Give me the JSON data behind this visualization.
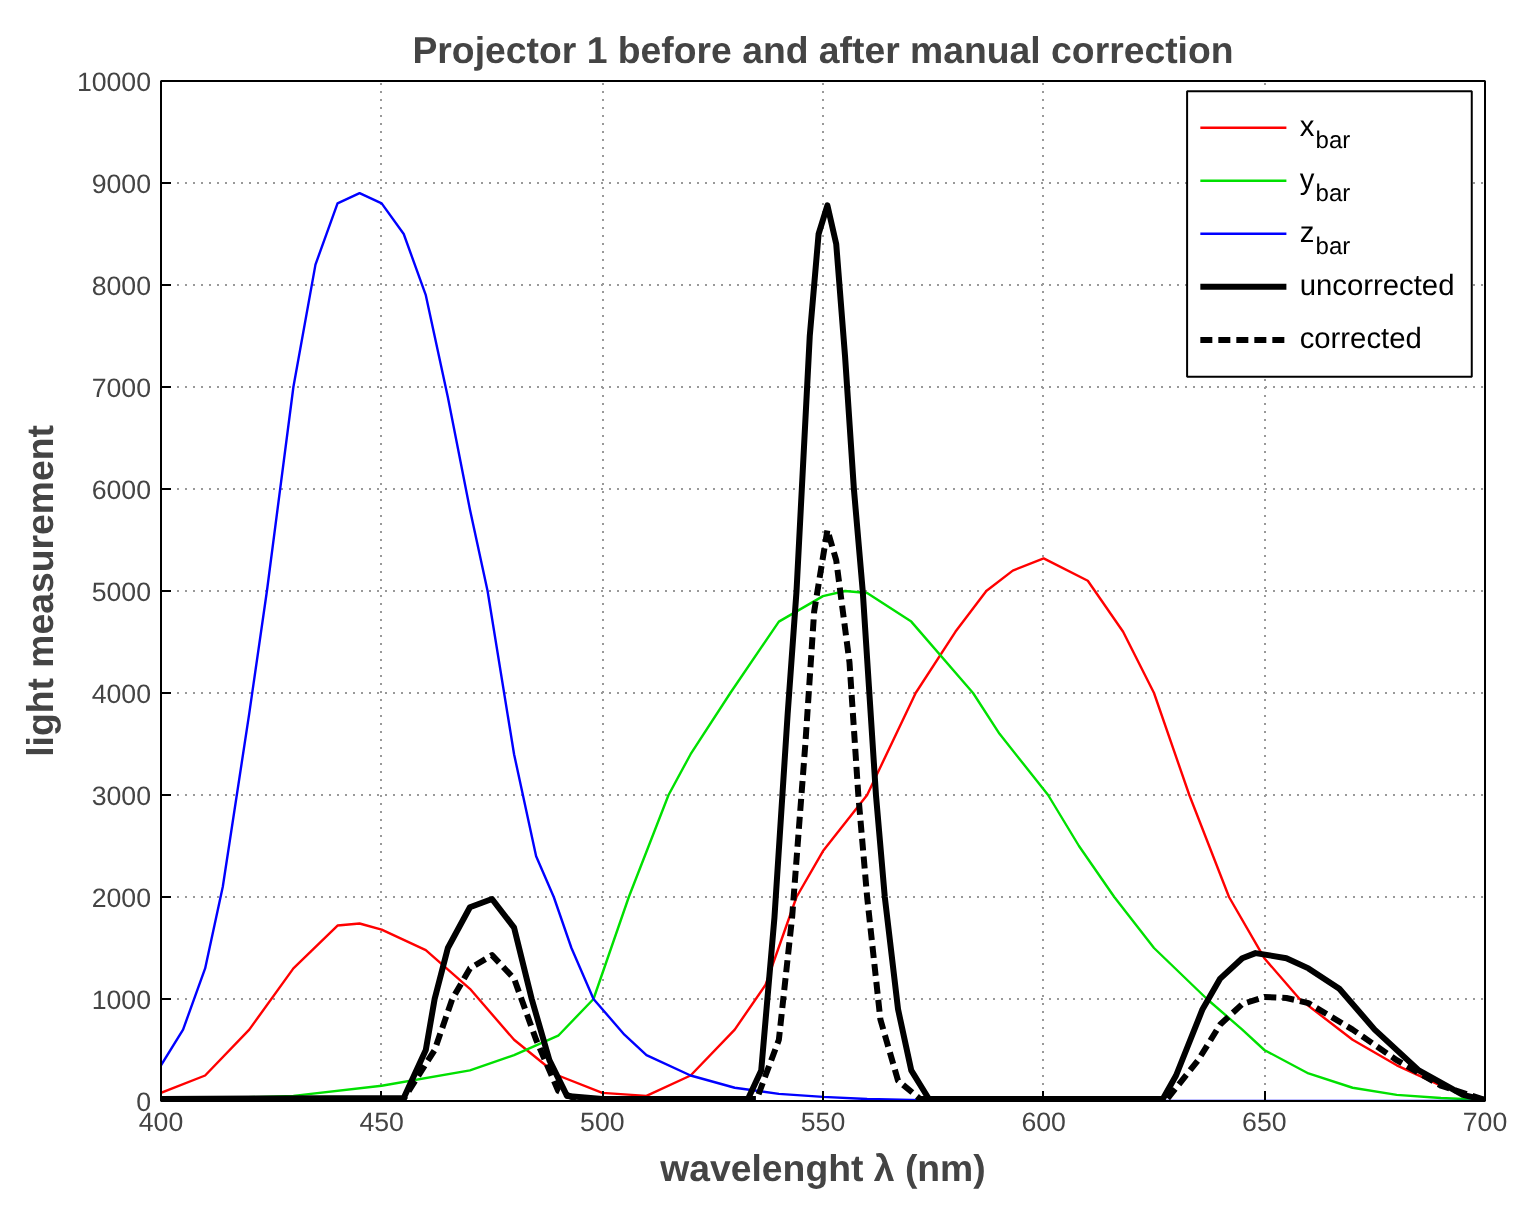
{
  "chart_data": {
    "type": "line",
    "title": "Projector 1 before and after manual correction",
    "xlabel": "wavelenght λ (nm)",
    "ylabel": "light measurement",
    "xlim": [
      400,
      700
    ],
    "ylim": [
      0,
      10000
    ],
    "xticks": [
      400,
      450,
      500,
      550,
      600,
      650,
      700
    ],
    "yticks": [
      0,
      1000,
      2000,
      3000,
      4000,
      5000,
      6000,
      7000,
      8000,
      9000,
      10000
    ],
    "grid": true,
    "legend": "top right",
    "marker": "none",
    "series": [
      {
        "name": "x$_{bar}$",
        "color": "#ff0000",
        "line_style": "solid",
        "x": [
          400,
          410,
          420,
          430,
          440,
          445,
          450,
          460,
          470,
          480,
          490,
          500,
          510,
          520,
          530,
          537,
          544,
          550,
          560,
          571,
          580,
          587,
          593,
          600,
          610,
          618,
          625,
          633,
          642,
          650,
          658,
          670,
          680,
          690
        ],
        "values": [
          80,
          250,
          700,
          1300,
          1720,
          1740,
          1680,
          1480,
          1100,
          600,
          250,
          80,
          50,
          250,
          700,
          1140,
          2000,
          2450,
          3000,
          4000,
          4600,
          5000,
          5200,
          5320,
          5100,
          4600,
          4000,
          3000,
          2000,
          1400,
          1000,
          600,
          350,
          150
        ]
      },
      {
        "name": "y$_{bar}$",
        "color": "#00e000",
        "line_style": "solid",
        "x": [
          400,
          430,
          450,
          470,
          480,
          490,
          498,
          506,
          515,
          520,
          529,
          540,
          550,
          555,
          560,
          570,
          584,
          590,
          601,
          608,
          616,
          625,
          637,
          645,
          650,
          660,
          670,
          680,
          690,
          700
        ],
        "values": [
          10,
          50,
          150,
          300,
          450,
          640,
          1000,
          2000,
          3000,
          3400,
          4000,
          4700,
          4950,
          5000,
          4980,
          4700,
          4000,
          3600,
          3000,
          2500,
          2000,
          1500,
          1000,
          700,
          500,
          270,
          130,
          60,
          30,
          10
        ]
      },
      {
        "name": "z$_{bar}$",
        "color": "#0000ff",
        "line_style": "solid",
        "x": [
          400,
          405,
          410,
          414,
          420,
          424,
          430,
          435,
          440,
          445,
          450,
          455,
          460,
          465,
          470,
          474,
          480,
          485,
          489,
          493,
          498,
          505,
          510,
          520,
          530,
          540,
          550,
          560,
          580,
          600,
          650,
          700
        ],
        "values": [
          350,
          700,
          1300,
          2100,
          3800,
          5000,
          7000,
          8200,
          8800,
          8900,
          8800,
          8500,
          7900,
          6900,
          5800,
          5000,
          3400,
          2400,
          2000,
          1500,
          1000,
          650,
          450,
          250,
          130,
          70,
          40,
          20,
          null,
          null,
          0,
          0
        ]
      },
      {
        "name": "uncorrected",
        "color": "#000000",
        "line_style": "solid",
        "x": [
          400,
          455,
          460,
          462,
          465,
          470,
          475,
          480,
          484,
          488,
          492,
          500,
          533,
          536,
          539,
          542,
          544,
          547,
          549,
          551,
          553,
          555,
          557,
          559,
          562,
          564,
          567,
          570,
          574,
          600,
          627,
          630,
          636,
          640,
          645,
          648,
          655,
          660,
          667,
          675,
          685,
          695,
          700
        ],
        "values": [
          20,
          30,
          500,
          1000,
          1500,
          1900,
          1980,
          1700,
          1000,
          400,
          50,
          20,
          20,
          300,
          1800,
          3800,
          5000,
          7500,
          8500,
          8780,
          8400,
          7300,
          6000,
          5000,
          3000,
          2000,
          900,
          300,
          20,
          20,
          20,
          250,
          900,
          1200,
          1400,
          1450,
          1400,
          1300,
          1100,
          700,
          300,
          60,
          10
        ]
      },
      {
        "name": "corrected",
        "color": "#000000",
        "line_style": "dashed",
        "x": [
          400,
          455,
          462,
          466,
          470,
          475,
          480,
          485,
          490,
          494,
          500,
          535,
          540,
          543,
          546,
          548,
          551,
          553,
          556,
          558,
          560,
          563,
          567,
          572,
          600,
          628,
          635,
          640,
          645,
          650,
          655,
          660,
          670,
          680,
          690,
          700
        ],
        "values": [
          20,
          20,
          500,
          1000,
          1300,
          1430,
          1200,
          600,
          100,
          20,
          20,
          20,
          600,
          1800,
          3500,
          4800,
          5600,
          5300,
          4300,
          3000,
          2000,
          800,
          200,
          20,
          20,
          20,
          400,
          750,
          950,
          1020,
          1010,
          960,
          700,
          400,
          150,
          10
        ]
      }
    ]
  }
}
